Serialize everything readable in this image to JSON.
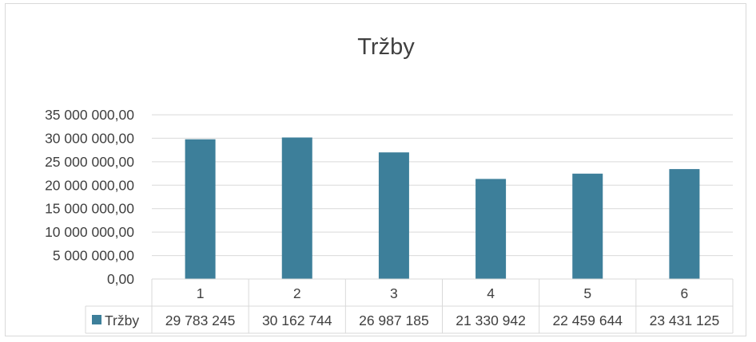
{
  "chart_data": {
    "type": "bar",
    "title": "Tržby",
    "categories": [
      "1",
      "2",
      "3",
      "4",
      "5",
      "6"
    ],
    "series": [
      {
        "name": "Tržby",
        "values": [
          29783245,
          30162744,
          26987185,
          21330942,
          22459644,
          23431125
        ],
        "value_labels": [
          "29 783 245",
          "30 162 744",
          "26 987 185",
          "21 330 942",
          "22 459 644",
          "23 431 125"
        ]
      }
    ],
    "y_ticks": [
      0,
      5000000,
      10000000,
      15000000,
      20000000,
      25000000,
      30000000,
      35000000
    ],
    "y_tick_labels": [
      "0,00",
      "5 000 000,00",
      "10 000 000,00",
      "15 000 000,00",
      "20 000 000,00",
      "25 000 000,00",
      "30 000 000,00",
      "35 000 000,00"
    ],
    "ylim": [
      0,
      35000000
    ],
    "xlabel": "",
    "ylabel": "",
    "grid": true,
    "legend": "data-table-below",
    "colors": {
      "bar": "#3d7f9a",
      "grid": "#d9d9d9",
      "text": "#404040"
    }
  }
}
